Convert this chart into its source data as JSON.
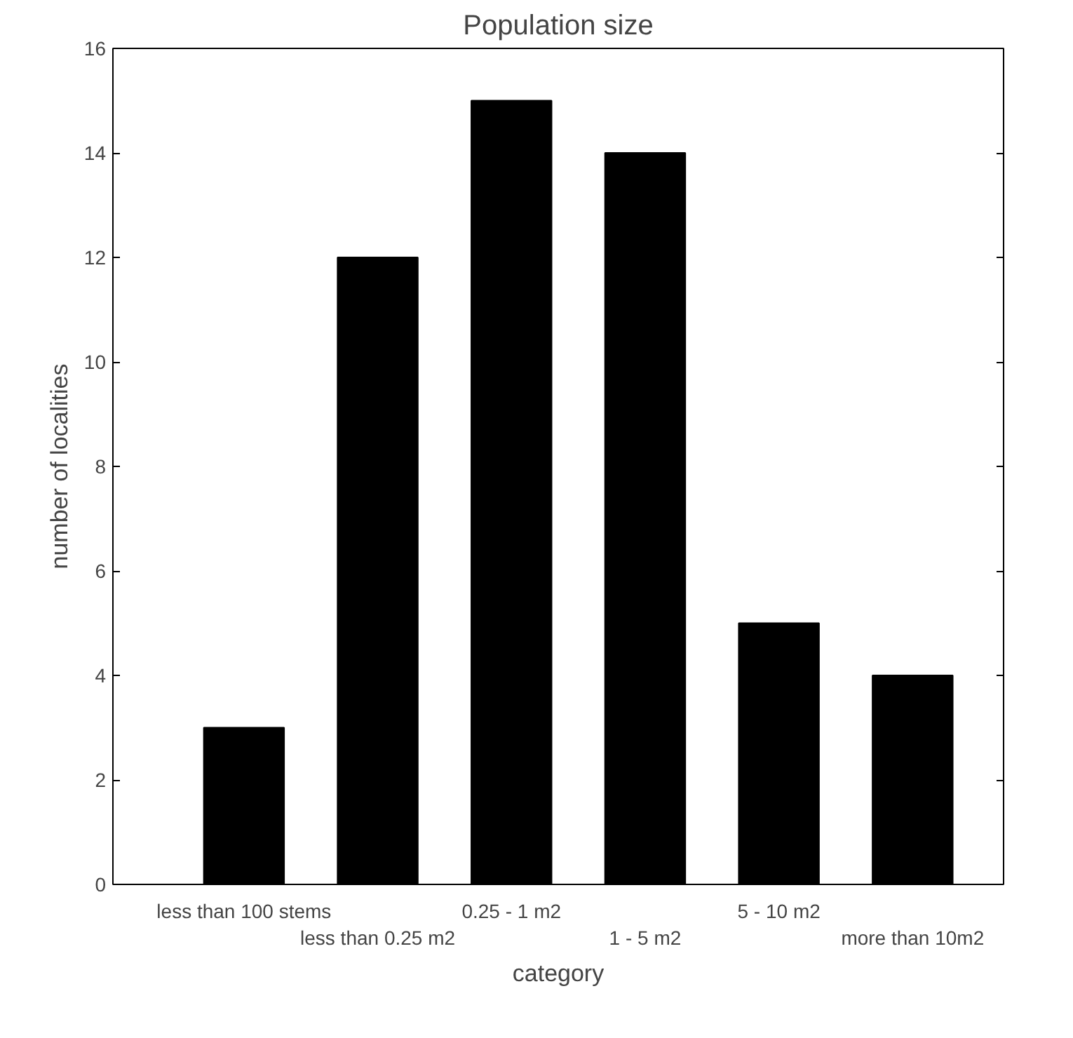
{
  "chart_data": {
    "type": "bar",
    "title": "Population size",
    "xlabel": "category",
    "ylabel": "number of localities",
    "categories": [
      "less than 100 stems",
      "less than 0.25 m2",
      "0.25 - 1 m2",
      "1 - 5 m2",
      "5 - 10 m2",
      "more than 10m2"
    ],
    "values": [
      3,
      12,
      15,
      14,
      5,
      4
    ],
    "color": "#000000",
    "ylim": [
      0,
      16
    ],
    "yticks": [
      0,
      2,
      4,
      6,
      8,
      10,
      12,
      14,
      16
    ],
    "grid": false
  }
}
